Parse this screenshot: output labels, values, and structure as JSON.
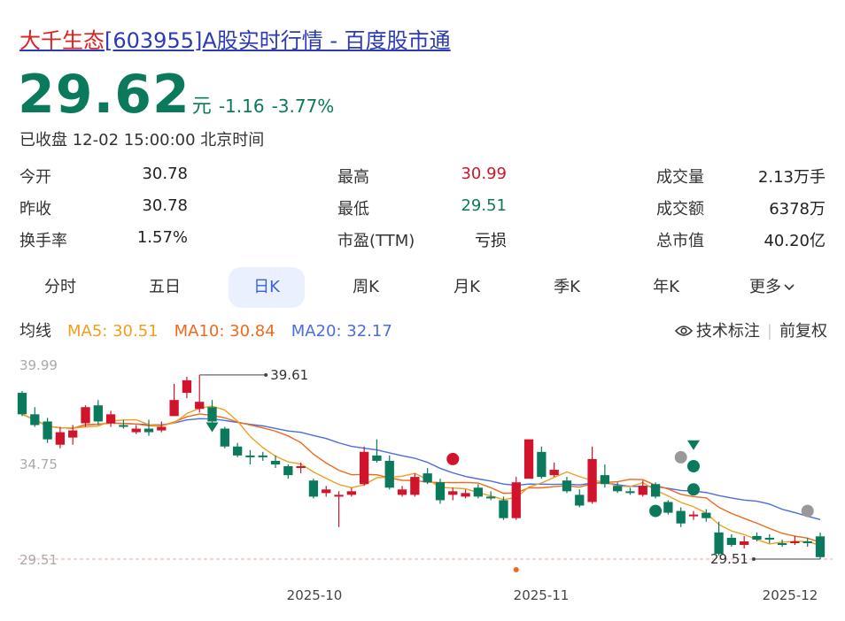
{
  "header": {
    "title_name": "大千生态",
    "title_rest": "[603955]A股实时行情 - 百度股市通"
  },
  "quote": {
    "price": "29.62",
    "unit": "元",
    "change": "-1.16",
    "change_pct": "-3.77%",
    "status": "已收盘 12-02 15:00:00 北京时间"
  },
  "stats": [
    {
      "label": "今开",
      "value": "30.78",
      "tone": "neutral"
    },
    {
      "label": "最高",
      "value": "30.99",
      "tone": "red"
    },
    {
      "label": "成交量",
      "value": "2.13万手",
      "tone": "neutral"
    },
    {
      "label": "昨收",
      "value": "30.78",
      "tone": "neutral"
    },
    {
      "label": "最低",
      "value": "29.51",
      "tone": "green"
    },
    {
      "label": "成交额",
      "value": "6378万",
      "tone": "neutral"
    },
    {
      "label": "换手率",
      "value": "1.57%",
      "tone": "neutral"
    },
    {
      "label": "市盈(TTM)",
      "value": "亏损",
      "tone": "neutral"
    },
    {
      "label": "总市值",
      "value": "40.20亿",
      "tone": "neutral"
    }
  ],
  "tabs": [
    "分时",
    "五日",
    "日K",
    "周K",
    "月K",
    "季K",
    "年K",
    "更多"
  ],
  "active_tab": "日K",
  "ma": {
    "label": "均线",
    "ma5": "MA5: 30.51",
    "ma10": "MA10: 30.84",
    "ma20": "MA20: 32.17"
  },
  "tools": {
    "annotate": "技术标注",
    "adjust": "前复权"
  },
  "colors": {
    "up": "#d0142c",
    "down": "#0b7a5c",
    "ma5": "#f0a020",
    "ma10": "#ee6a1e",
    "ma20": "#4a6de0",
    "tab_active_bg": "#eaf0fd",
    "tab_active_text": "#3a62e0"
  },
  "chart_data": {
    "type": "candlestick",
    "y_ticks": [
      "39.99",
      "34.75",
      "29.51"
    ],
    "ylim": [
      29.51,
      39.99
    ],
    "x_ticks": [
      "2025-10",
      "2025-11",
      "2025-12"
    ],
    "high_label": "39.61",
    "low_label": "29.51",
    "candles": [
      [
        38.8,
        37.6,
        38.9,
        37.5
      ],
      [
        37.6,
        37.0,
        38.0,
        36.9
      ],
      [
        37.2,
        36.2,
        37.4,
        36.0
      ],
      [
        35.9,
        36.6,
        36.9,
        35.7
      ],
      [
        36.3,
        36.7,
        37.0,
        35.9
      ],
      [
        37.1,
        38.0,
        38.1,
        36.9
      ],
      [
        38.1,
        37.2,
        38.4,
        37.0
      ],
      [
        37.1,
        37.6,
        37.8,
        36.9
      ],
      [
        37.0,
        36.9,
        37.3,
        36.8
      ],
      [
        36.6,
        36.8,
        37.0,
        36.5
      ],
      [
        36.8,
        36.6,
        37.3,
        36.4
      ],
      [
        36.7,
        36.9,
        37.2,
        36.6
      ],
      [
        37.5,
        38.4,
        39.3,
        37.5
      ],
      [
        38.8,
        39.5,
        39.7,
        38.5
      ],
      [
        37.9,
        38.3,
        39.8,
        37.7
      ],
      [
        38.0,
        37.2,
        38.4,
        37.1
      ],
      [
        36.8,
        35.8,
        36.9,
        35.7
      ],
      [
        35.8,
        35.3,
        36.0,
        35.2
      ],
      [
        35.3,
        35.2,
        35.6,
        34.8
      ],
      [
        35.3,
        35.2,
        35.5,
        35.0
      ],
      [
        35.0,
        34.8,
        35.3,
        34.6
      ],
      [
        34.7,
        34.2,
        34.8,
        34.0
      ],
      [
        34.6,
        34.7,
        34.9,
        34.3
      ],
      [
        33.9,
        33.0,
        34.0,
        32.9
      ],
      [
        33.2,
        33.4,
        33.6,
        33.0
      ],
      [
        33.0,
        33.1,
        33.3,
        31.3
      ],
      [
        33.1,
        33.3,
        33.5,
        33.0
      ],
      [
        33.7,
        35.5,
        35.8,
        33.6
      ],
      [
        35.3,
        35.0,
        36.2,
        34.9
      ],
      [
        35.0,
        33.5,
        35.3,
        33.4
      ],
      [
        33.1,
        33.4,
        33.6,
        33.0
      ],
      [
        33.1,
        34.1,
        34.3,
        33.0
      ],
      [
        34.3,
        33.8,
        34.6,
        33.7
      ],
      [
        33.8,
        32.8,
        34.0,
        32.6
      ],
      [
        33.1,
        33.3,
        33.5,
        32.8
      ],
      [
        33.0,
        33.2,
        33.4,
        32.9
      ],
      [
        33.5,
        33.0,
        33.7,
        32.9
      ],
      [
        33.0,
        32.9,
        33.3,
        32.8
      ],
      [
        32.8,
        31.8,
        33.0,
        31.7
      ],
      [
        31.8,
        33.8,
        34.1,
        31.7
      ],
      [
        34.0,
        36.2,
        36.2,
        34.0
      ],
      [
        35.5,
        34.1,
        35.8,
        34.0
      ],
      [
        34.2,
        34.5,
        34.9,
        34.1
      ],
      [
        33.9,
        33.3,
        34.1,
        33.2
      ],
      [
        33.1,
        32.5,
        33.4,
        32.4
      ],
      [
        32.7,
        35.1,
        35.8,
        32.6
      ],
      [
        34.2,
        33.7,
        34.8,
        33.5
      ],
      [
        33.6,
        33.3,
        33.8,
        33.2
      ],
      [
        33.3,
        33.2,
        33.5,
        33.1
      ],
      [
        33.1,
        33.6,
        33.9,
        33.0
      ],
      [
        33.7,
        33.0,
        33.8,
        32.9
      ],
      [
        32.7,
        32.1,
        32.8,
        32.0
      ],
      [
        32.2,
        31.5,
        32.4,
        31.3
      ],
      [
        31.9,
        32.0,
        32.2,
        31.7
      ],
      [
        32.1,
        31.8,
        32.3,
        31.6
      ],
      [
        31.0,
        29.8,
        31.6,
        29.7
      ],
      [
        30.7,
        30.3,
        30.9,
        30.2
      ],
      [
        30.3,
        30.5,
        30.8,
        30.1
      ],
      [
        30.8,
        30.6,
        31.0,
        30.5
      ],
      [
        30.7,
        30.6,
        30.9,
        30.4
      ],
      [
        30.4,
        30.3,
        30.6,
        30.2
      ],
      [
        30.4,
        30.5,
        30.8,
        30.3
      ],
      [
        30.5,
        30.4,
        30.7,
        30.2
      ],
      [
        30.78,
        29.62,
        30.99,
        29.51
      ]
    ]
  }
}
